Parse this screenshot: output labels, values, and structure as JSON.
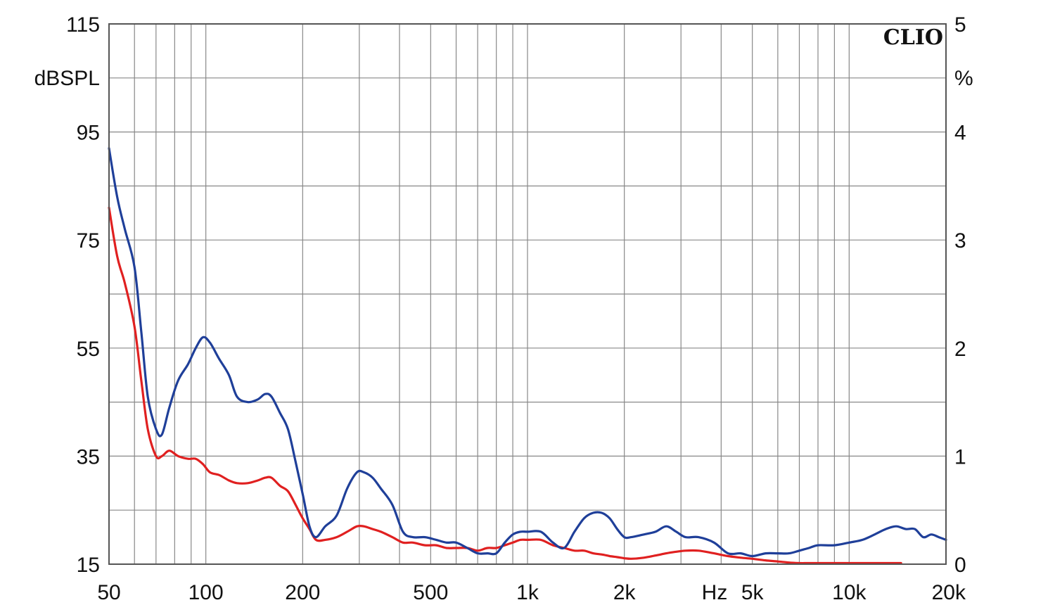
{
  "chart_data": {
    "type": "line",
    "brand": "CLIO",
    "xscale": "log",
    "xlim": [
      50,
      20000
    ],
    "ylim_left": [
      15,
      115
    ],
    "ylim_right": [
      0,
      5
    ],
    "ylabel_left": "dBSPL",
    "ylabel_right": "%",
    "xlabel": "Hz",
    "grid": true,
    "left_ticks": [
      "115",
      "95",
      "75",
      "55",
      "35",
      "15"
    ],
    "left_tick_values": [
      115,
      95,
      75,
      55,
      35,
      15
    ],
    "right_ticks": [
      "5",
      "4",
      "3",
      "2",
      "1",
      "0"
    ],
    "right_tick_values": [
      5,
      4,
      3,
      2,
      1,
      0
    ],
    "x_ticks": [
      "50",
      "100",
      "200",
      "500",
      "1k",
      "2k",
      "5k",
      "10k",
      "20k"
    ],
    "x_tick_values": [
      50,
      100,
      200,
      500,
      1000,
      2000,
      5000,
      10000,
      20000
    ],
    "series": [
      {
        "color": "#1f3f99",
        "x": [
          50,
          53,
          56,
          60,
          63,
          66,
          70,
          73,
          77,
          82,
          88,
          93,
          98,
          103,
          110,
          118,
          125,
          135,
          145,
          153,
          160,
          170,
          180,
          190,
          200,
          210,
          220,
          235,
          255,
          275,
          295,
          310,
          330,
          350,
          380,
          410,
          440,
          480,
          520,
          560,
          600,
          650,
          700,
          750,
          800,
          850,
          900,
          950,
          1000,
          1100,
          1200,
          1300,
          1400,
          1500,
          1600,
          1700,
          1800,
          1900,
          2000,
          2100,
          2300,
          2500,
          2700,
          2900,
          3100,
          3400,
          3800,
          4200,
          4600,
          5000,
          5500,
          6000,
          6500,
          7000,
          7500,
          8000,
          9000,
          10000,
          11000,
          12000,
          13000,
          14000,
          15000,
          16000,
          17000,
          18000,
          19000,
          20000
        ],
        "y": [
          92,
          83,
          77,
          70,
          58,
          46,
          40,
          39,
          44,
          49,
          52,
          55,
          57,
          56,
          53,
          50,
          46,
          45,
          45.5,
          46.5,
          46,
          43,
          40,
          34,
          28,
          22,
          20,
          22,
          24,
          29,
          32,
          32,
          31,
          29,
          26,
          21,
          20,
          20,
          19.5,
          19,
          19,
          18,
          17,
          17,
          17,
          19,
          20.5,
          21,
          21,
          21,
          19,
          18,
          21,
          23.5,
          24.5,
          24.5,
          23.5,
          21.5,
          20,
          20,
          20.5,
          21,
          22,
          21,
          20,
          20,
          19,
          17,
          17,
          16.5,
          17,
          17,
          17,
          17.5,
          18,
          18.5,
          18.5,
          19,
          19.5,
          20.5,
          21.5,
          22,
          21.5,
          21.5,
          20,
          20.5,
          20,
          19.5
        ]
      },
      {
        "color": "#e02020",
        "x": [
          50,
          53,
          56,
          60,
          63,
          66,
          70,
          73,
          77,
          82,
          88,
          93,
          98,
          103,
          110,
          118,
          125,
          135,
          145,
          153,
          160,
          170,
          180,
          190,
          200,
          210,
          220,
          235,
          255,
          275,
          295,
          310,
          330,
          350,
          380,
          410,
          440,
          480,
          520,
          560,
          600,
          650,
          700,
          750,
          800,
          850,
          900,
          950,
          1000,
          1100,
          1200,
          1300,
          1400,
          1500,
          1600,
          1700,
          1800,
          1900,
          2000,
          2100,
          2300,
          2500,
          2700,
          2900,
          3100,
          3400,
          3800,
          4200,
          4600,
          5000,
          5500,
          6000,
          6500,
          7000,
          7500,
          8000,
          9000,
          10000,
          11000,
          12000,
          13000,
          14000,
          14500
        ],
        "y": [
          81,
          72,
          67,
          59,
          49,
          40,
          35,
          35,
          36,
          35,
          34.5,
          34.5,
          33.5,
          32,
          31.5,
          30.5,
          30,
          30,
          30.5,
          31,
          31,
          29.5,
          28.5,
          26,
          23.5,
          21.5,
          19.5,
          19.5,
          20,
          21,
          22,
          22,
          21.5,
          21,
          20,
          19,
          19,
          18.5,
          18.5,
          18,
          18,
          18,
          17.5,
          18,
          18,
          18.5,
          19,
          19.5,
          19.5,
          19.5,
          18.5,
          18,
          17.5,
          17.5,
          17,
          16.8,
          16.5,
          16.3,
          16.1,
          16,
          16.2,
          16.6,
          17,
          17.3,
          17.5,
          17.5,
          17,
          16.5,
          16.2,
          16,
          15.7,
          15.5,
          15.3,
          15.2,
          15.2,
          15.2,
          15.2,
          15.2,
          15.2,
          15.2,
          15.2,
          15.2,
          15.2
        ]
      }
    ]
  }
}
